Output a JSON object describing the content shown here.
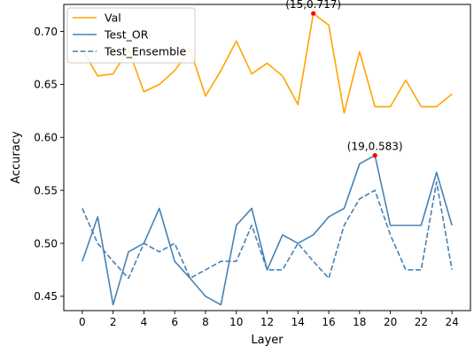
{
  "chart_data": {
    "type": "line",
    "title": "",
    "xlabel": "Layer",
    "ylabel": "Accuracy",
    "xlim": [
      -1.2,
      25.2
    ],
    "ylim": [
      0.4365,
      0.7255
    ],
    "xticks": [
      0,
      2,
      4,
      6,
      8,
      10,
      12,
      14,
      16,
      18,
      20,
      22,
      24
    ],
    "yticks": [
      0.45,
      0.5,
      0.55,
      0.6,
      0.65,
      0.7
    ],
    "grid": false,
    "legend_position": "top-left",
    "x": [
      0,
      1,
      2,
      3,
      4,
      5,
      6,
      7,
      8,
      9,
      10,
      11,
      12,
      13,
      14,
      15,
      16,
      17,
      18,
      19,
      20,
      21,
      22,
      23,
      24
    ],
    "series": [
      {
        "name": "Val",
        "color": "#ffa500",
        "style": "solid",
        "values": [
          0.683,
          0.658,
          0.66,
          0.683,
          0.643,
          0.65,
          0.663,
          0.683,
          0.639,
          0.663,
          0.691,
          0.66,
          0.67,
          0.658,
          0.631,
          0.717,
          0.706,
          0.623,
          0.681,
          0.629,
          0.629,
          0.654,
          0.629,
          0.629,
          0.641
        ]
      },
      {
        "name": "Test_OR",
        "color": "#4682b4",
        "style": "solid",
        "values": [
          0.483,
          0.525,
          0.442,
          0.492,
          0.5,
          0.533,
          0.483,
          0.467,
          0.45,
          0.442,
          0.517,
          0.533,
          0.475,
          0.508,
          0.5,
          0.508,
          0.525,
          0.533,
          0.575,
          0.583,
          0.517,
          0.517,
          0.517,
          0.567,
          0.517
        ]
      },
      {
        "name": "Test_Ensemble",
        "color": "#4682b4",
        "style": "dashed",
        "values": [
          0.533,
          0.5,
          0.483,
          0.467,
          0.5,
          0.492,
          0.5,
          0.467,
          0.475,
          0.483,
          0.483,
          0.517,
          0.475,
          0.475,
          0.5,
          0.483,
          0.467,
          0.517,
          0.542,
          0.55,
          0.508,
          0.475,
          0.475,
          0.558,
          0.475
        ]
      }
    ],
    "annotations": [
      {
        "text": "(15,0.717)",
        "x": 15,
        "y": 0.717,
        "marker_color": "#ff0000"
      },
      {
        "text": "(19,0.583)",
        "x": 19,
        "y": 0.583,
        "marker_color": "#ff0000"
      }
    ]
  }
}
